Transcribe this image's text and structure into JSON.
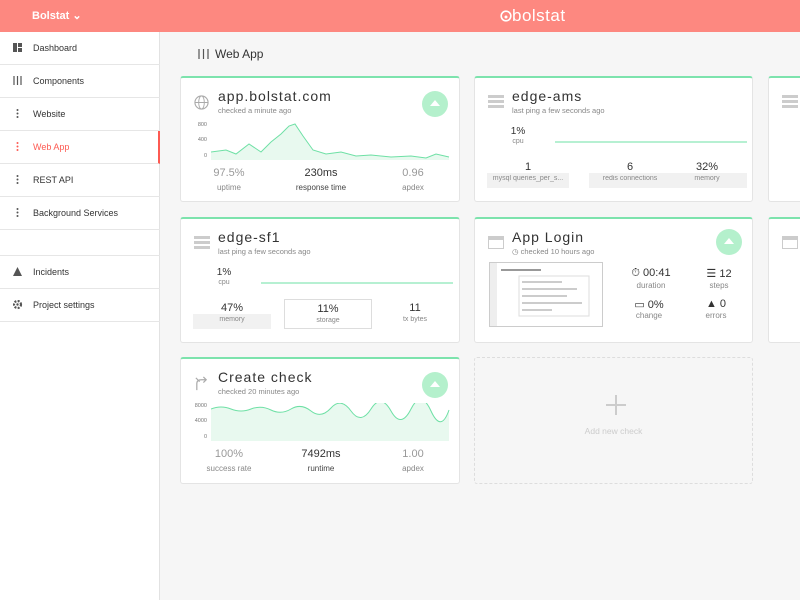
{
  "header": {
    "brand": "Bolstat",
    "logo": "bolstat"
  },
  "sidebar": {
    "items": [
      {
        "label": "Dashboard",
        "active": false
      },
      {
        "label": "Components",
        "active": false
      },
      {
        "label": "Website",
        "active": false
      },
      {
        "label": "Web App",
        "active": true
      },
      {
        "label": "REST API",
        "active": false
      },
      {
        "label": "Background Services",
        "active": false
      }
    ],
    "footer_items": [
      "Incidents",
      "Project settings"
    ]
  },
  "page": {
    "title": "Web App"
  },
  "cards": [
    {
      "title": "app.bolstat.com",
      "subtitle": "checked a minute ago",
      "axis": [
        "800",
        "400",
        "0"
      ],
      "metrics": [
        {
          "value": "97.5%",
          "label": "uptime"
        },
        {
          "value": "230ms",
          "label": "response time"
        },
        {
          "value": "0.96",
          "label": "apdex"
        }
      ]
    },
    {
      "title": "edge-ams",
      "subtitle": "last ping a few seconds ago",
      "cpu": {
        "value": "1%",
        "label": "cpu"
      },
      "stats": [
        {
          "value": "1",
          "label": "mysql queries_per_s..."
        },
        {
          "value": "6",
          "label": "redis connections"
        },
        {
          "value": "32%",
          "label": "memory"
        }
      ]
    },
    {
      "title": "edge-sf1",
      "subtitle": "last ping a few seconds ago",
      "cpu": {
        "value": "1%",
        "label": "cpu"
      },
      "stats": [
        {
          "value": "47%",
          "label": "memory"
        },
        {
          "value": "11%",
          "label": "storage"
        },
        {
          "value": "11",
          "label": "tx bytes"
        }
      ]
    },
    {
      "title": "App Login",
      "subtitle": "checked 10 hours ago",
      "metrics": [
        {
          "value": "00:41",
          "label": "duration"
        },
        {
          "value": "12",
          "label": "steps"
        },
        {
          "value": "0%",
          "label": "change"
        },
        {
          "value": "0",
          "label": "errors"
        }
      ]
    },
    {
      "title": "Create check",
      "subtitle": "checked 20 minutes ago",
      "axis": [
        "8000",
        "4000",
        "0"
      ],
      "metrics": [
        {
          "value": "100%",
          "label": "success rate"
        },
        {
          "value": "7492ms",
          "label": "runtime"
        },
        {
          "value": "1.00",
          "label": "apdex"
        }
      ]
    }
  ],
  "add_check": "Add new check"
}
